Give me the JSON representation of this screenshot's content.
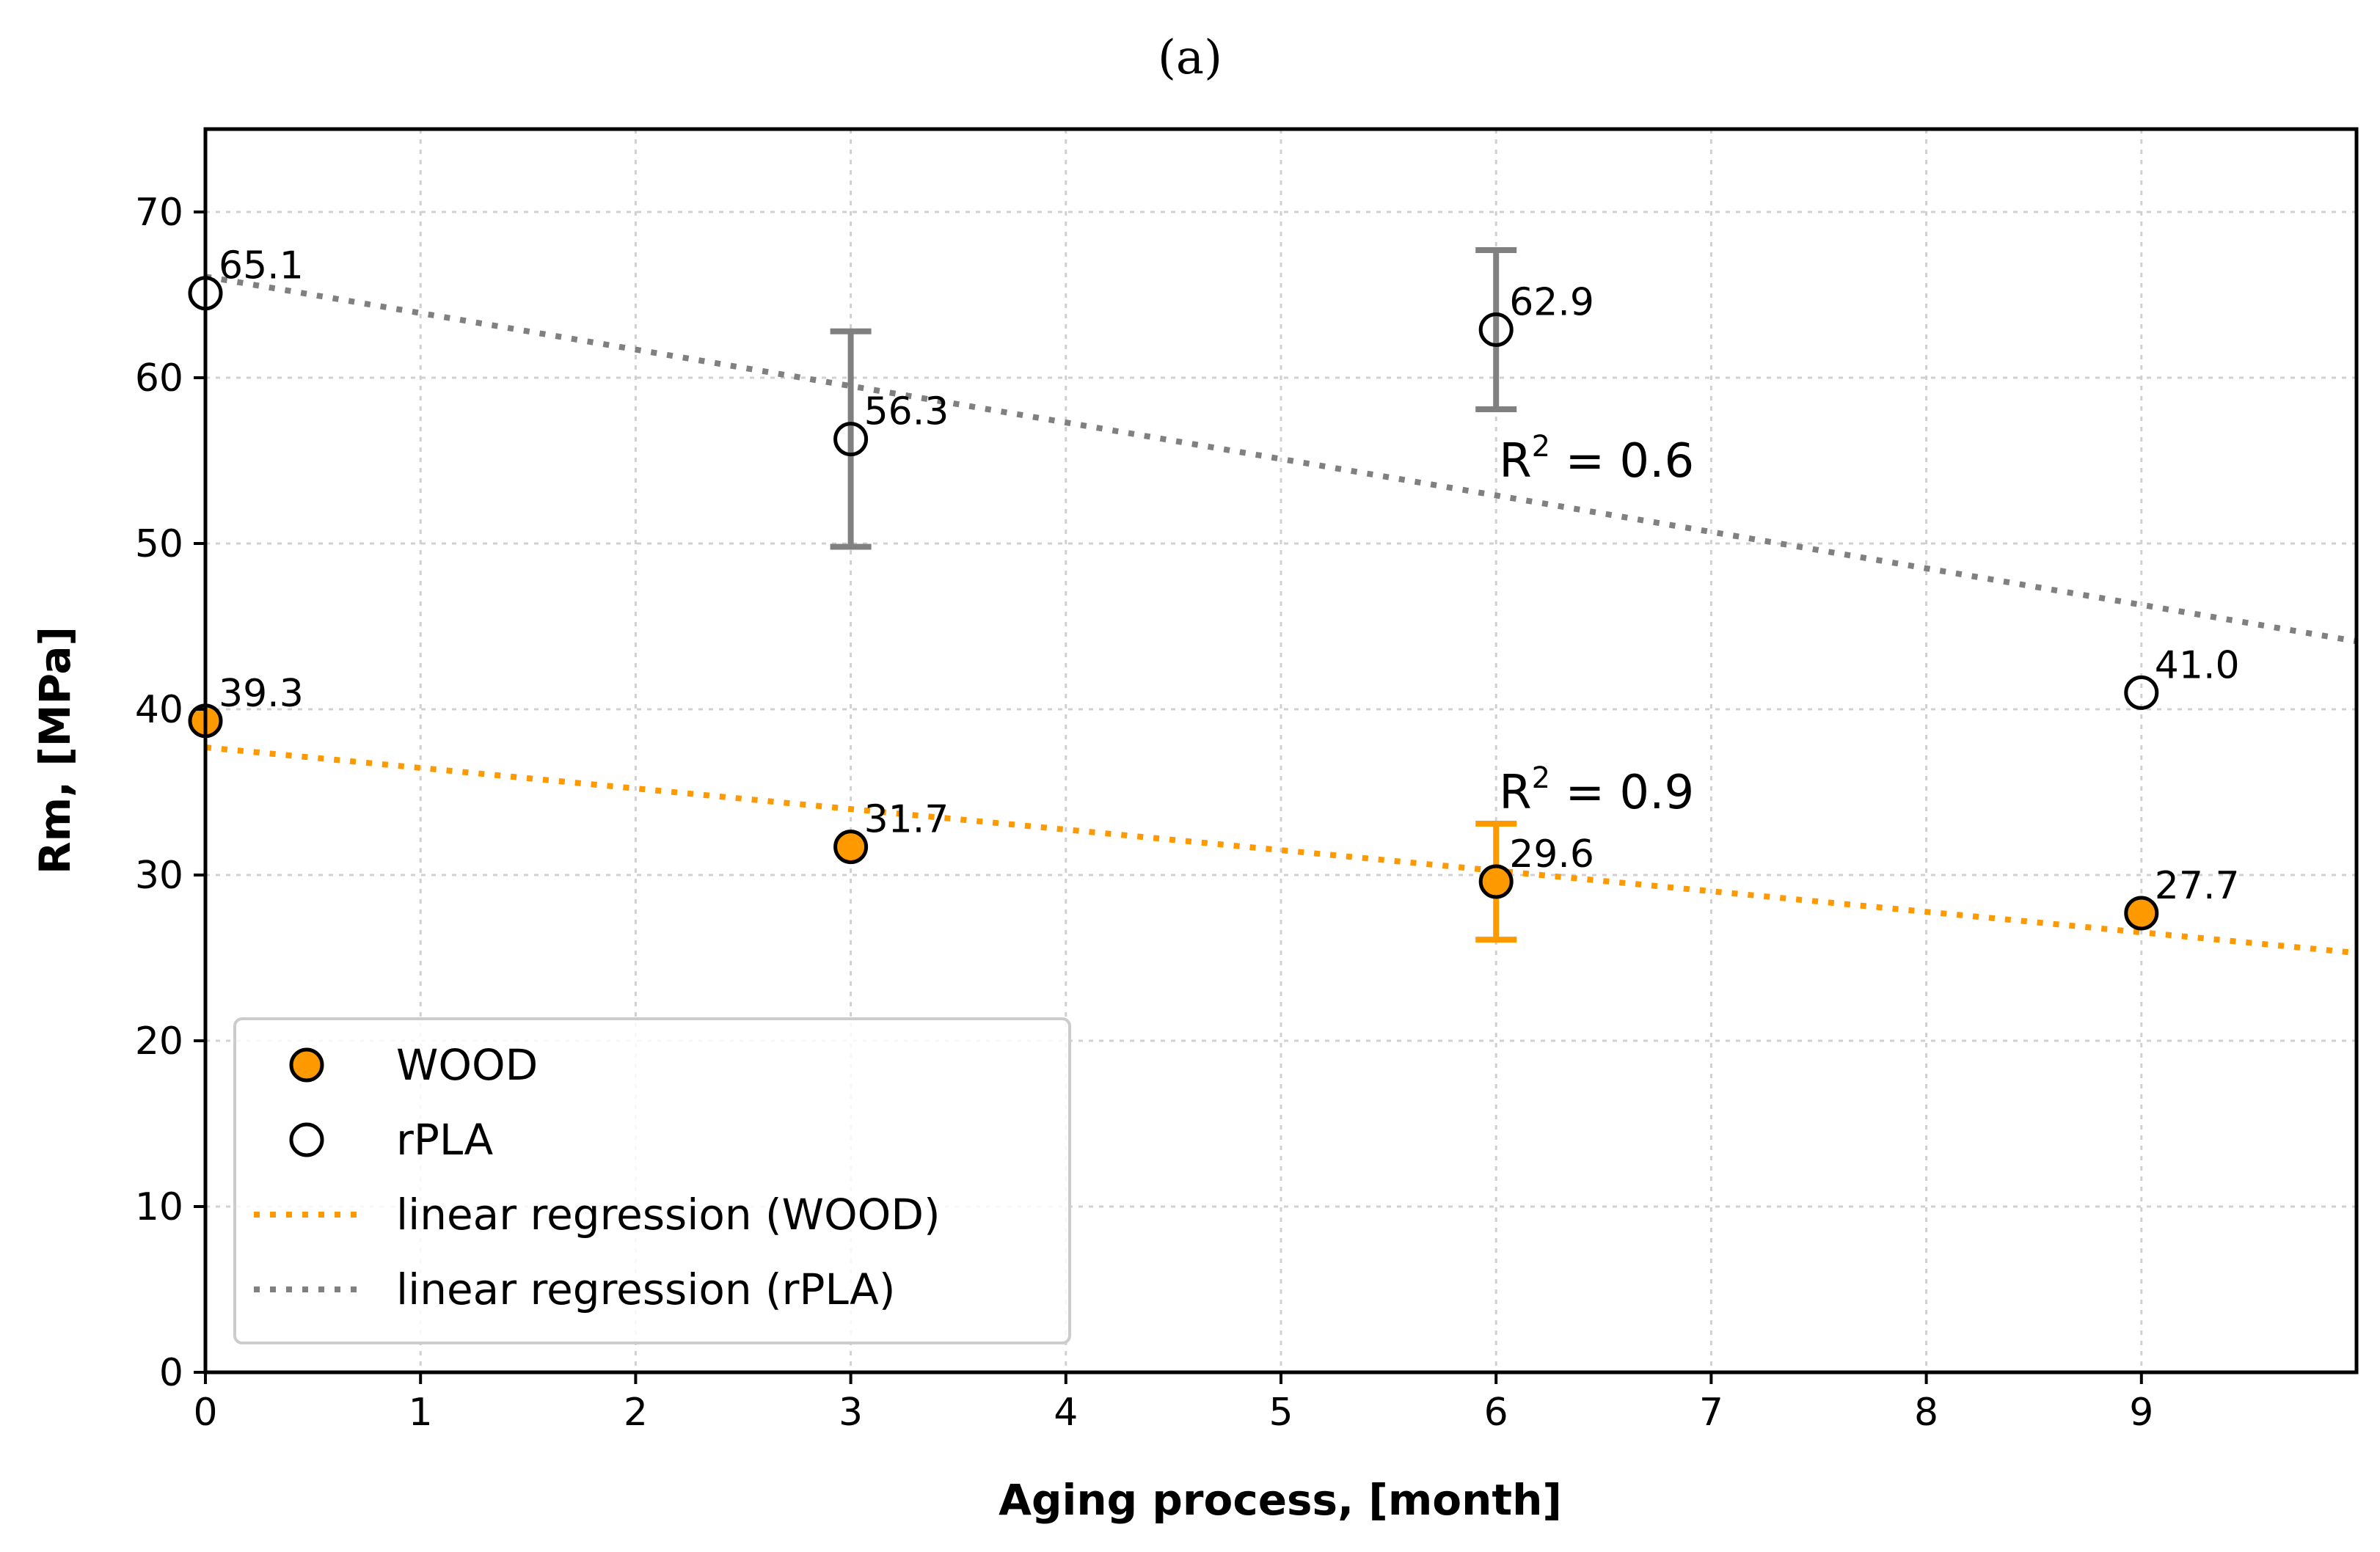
{
  "chart_data": {
    "type": "scatter",
    "panel_label": "(a)",
    "xlabel": "Aging process, [month]",
    "ylabel": "Rm, [MPa]",
    "xlim": [
      0,
      10
    ],
    "ylim": [
      0,
      75
    ],
    "xticks": [
      0,
      1,
      2,
      3,
      4,
      5,
      6,
      7,
      8,
      9
    ],
    "yticks": [
      0,
      10,
      20,
      30,
      40,
      50,
      60,
      70
    ],
    "grid": true,
    "legend_position": "lower-left",
    "colors": {
      "wood": "#ff9900",
      "rpla_line": "#808080",
      "rpla_edge": "#000000",
      "error_wood": "#ff9900",
      "error_rpla": "#808080"
    },
    "series": [
      {
        "name": "WOOD",
        "marker": "filled-circle",
        "x": [
          0,
          3,
          6,
          9
        ],
        "y": [
          39.3,
          31.7,
          29.6,
          27.7
        ],
        "labels": [
          "39.3",
          "31.7",
          "29.6",
          "27.7"
        ],
        "errors": [
          null,
          null,
          3.5,
          null
        ]
      },
      {
        "name": "rPLA",
        "marker": "open-circle",
        "x": [
          0,
          3,
          6,
          9
        ],
        "y": [
          65.1,
          56.3,
          62.9,
          41.0
        ],
        "labels": [
          "65.1",
          "56.3",
          "62.9",
          "41.0"
        ],
        "errors": [
          null,
          6.5,
          4.8,
          null
        ]
      }
    ],
    "regressions": [
      {
        "name": "linear regression (WOOD)",
        "slope": -1.24,
        "intercept": 37.7,
        "r2_text": "= 0.9",
        "r2_anchor": [
          6,
          35
        ],
        "color": "#ff9900"
      },
      {
        "name": "linear regression (rPLA)",
        "slope": -2.2,
        "intercept": 66.1,
        "r2_text": "= 0.6",
        "r2_anchor": [
          6,
          55
        ],
        "color": "#808080"
      }
    ],
    "legend": [
      "WOOD",
      "rPLA",
      "linear regression (WOOD)",
      "linear regression (rPLA)"
    ]
  }
}
